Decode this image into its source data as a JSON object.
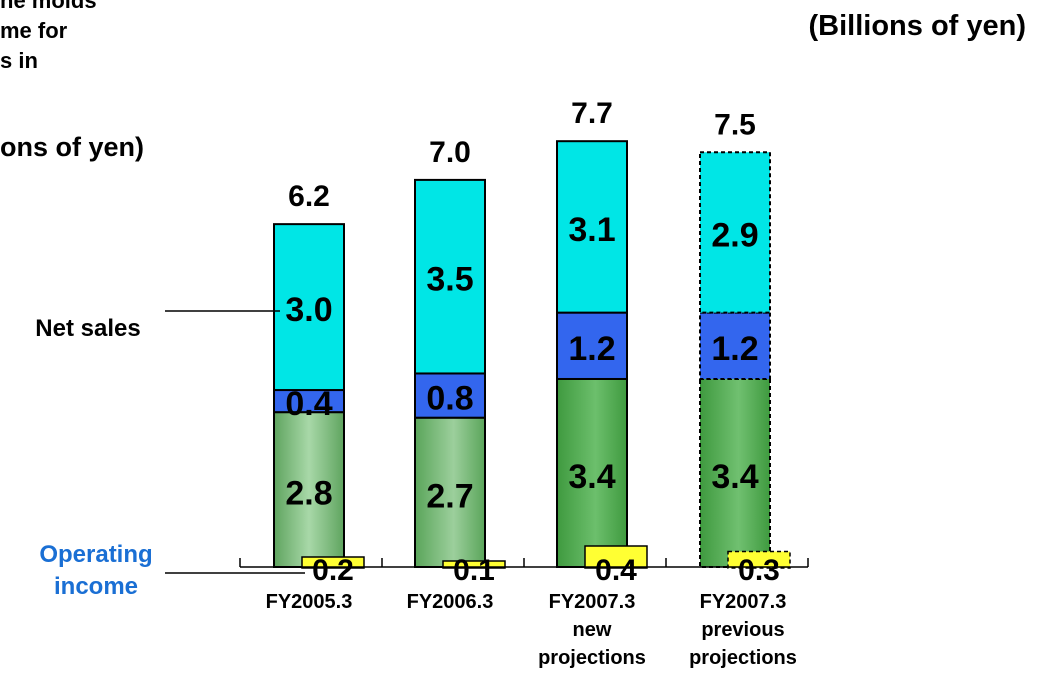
{
  "clipped_header": {
    "line1": "ne molds",
    "line2": "me for",
    "line3": "s in",
    "units": "ons of yen)"
  },
  "units_label": "(Billions of yen)",
  "legend": {
    "net_sales": "Net sales",
    "operating_income": [
      "Operating",
      "income"
    ]
  },
  "colors": {
    "top": "#00e6e6",
    "middle": "#3366ee",
    "bottom": "#5aa85a",
    "op_income": "#ffff33",
    "op_income_label": "#1a6fd4"
  },
  "chart_data": {
    "type": "bar",
    "stacked": true,
    "unit": "Billions of yen",
    "categories": [
      [
        "FY2005.3"
      ],
      [
        "FY2006.3"
      ],
      [
        "FY2007.3",
        "new",
        "projections"
      ],
      [
        "FY2007.3",
        "previous",
        "projections"
      ]
    ],
    "series": [
      {
        "values": [
          2.8,
          2.7,
          3.4,
          3.4
        ]
      },
      {
        "values": [
          0.4,
          0.8,
          1.2,
          1.2
        ]
      },
      {
        "values": [
          3.0,
          3.5,
          3.1,
          2.9
        ]
      }
    ],
    "totals": [
      6.2,
      7.0,
      7.7,
      7.5
    ],
    "operating_income": [
      0.2,
      0.1,
      0.4,
      0.3
    ],
    "projection_style": [
      "solid",
      "solid",
      "solid",
      "dashed"
    ],
    "labels": {
      "bottom": [
        "2.8",
        "2.7",
        "3.4",
        "3.4"
      ],
      "middle": [
        "0.4",
        "0.8",
        "1.2",
        "1.2"
      ],
      "top": [
        "3.0",
        "3.5",
        "3.1",
        "2.9"
      ],
      "totals": [
        "6.2",
        "7.0",
        "7.7",
        "7.5"
      ],
      "operating_income": [
        "0.2",
        "0.1",
        "0.4",
        "0.3"
      ]
    }
  }
}
